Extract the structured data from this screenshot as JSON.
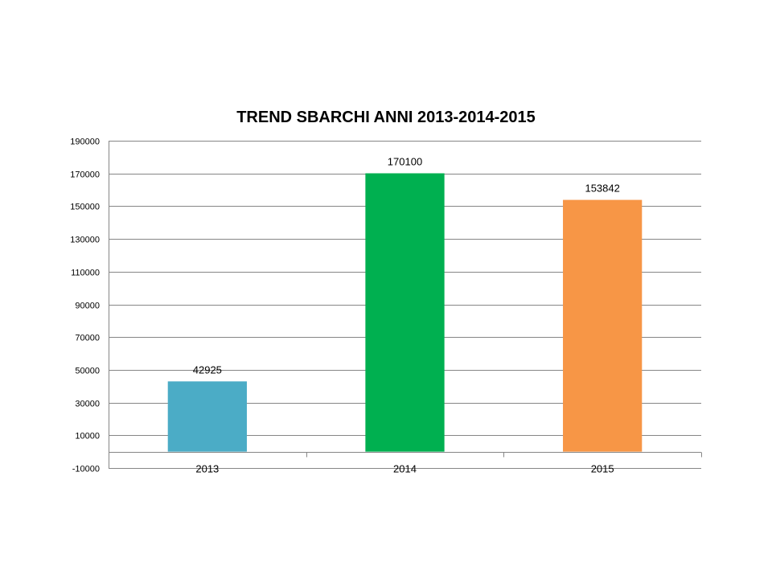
{
  "chart_data": {
    "type": "bar",
    "title": "TREND SBARCHI ANNI 2013-2014-2015",
    "xlabel": "",
    "ylabel": "",
    "categories": [
      "2013",
      "2014",
      "2015"
    ],
    "values": [
      42925,
      170100,
      153842
    ],
    "data_labels": [
      "42925",
      "170100",
      "153842"
    ],
    "colors": [
      "#4bacc6",
      "#00b050",
      "#f79646"
    ],
    "ylim": [
      -10000,
      190000
    ],
    "yticks": [
      -10000,
      10000,
      30000,
      50000,
      70000,
      90000,
      110000,
      130000,
      150000,
      170000,
      190000
    ],
    "ytick_labels": [
      "-10000",
      "10000",
      "30000",
      "50000",
      "70000",
      "90000",
      "110000",
      "130000",
      "150000",
      "170000",
      "190000"
    ],
    "grid": true,
    "legend": "none"
  }
}
